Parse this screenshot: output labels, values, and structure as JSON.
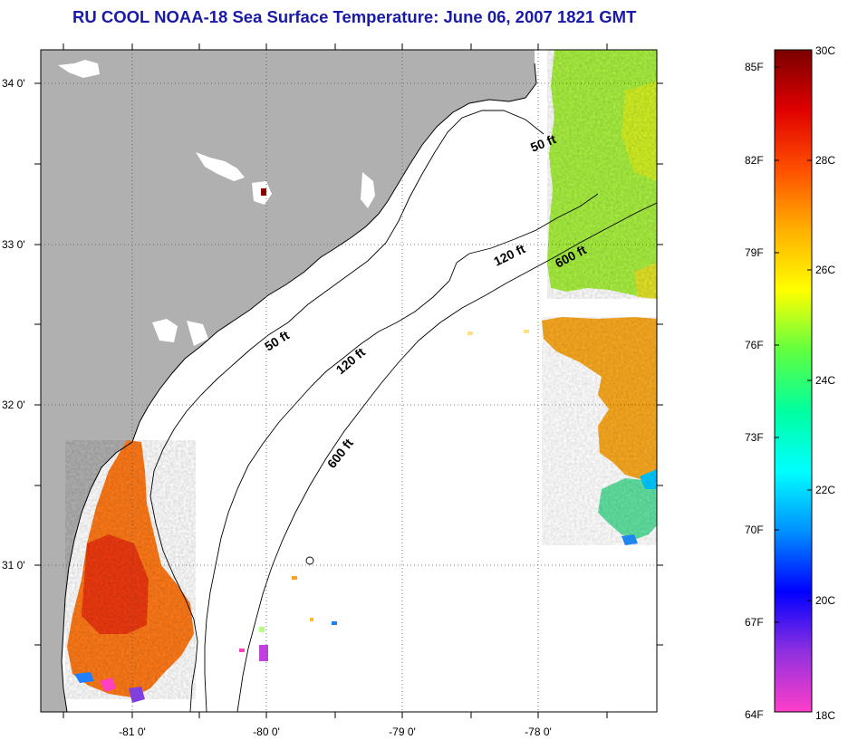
{
  "title": "RU COOL  NOAA-18  Sea Surface Temperature:  June 06, 2007 1821 GMT",
  "map": {
    "latitude_labels": [
      "34 0'",
      "33 0'",
      "32 0'",
      "31 0'"
    ],
    "longitude_labels": [
      "-81 0'",
      "-80 0'",
      "-79 0'",
      "-78 0'"
    ],
    "contours": [
      {
        "name": "50 ft",
        "label": "50 ft"
      },
      {
        "name": "120 ft",
        "label": "120 ft"
      },
      {
        "name": "600 ft",
        "label": "600 ft"
      }
    ],
    "colors": {
      "land": "#b0b0b0",
      "no_data": "#ffffff",
      "grid": "#555555"
    }
  },
  "colorbar": {
    "fahrenheit_labels": [
      "85F",
      "82F",
      "79F",
      "76F",
      "73F",
      "70F",
      "67F",
      "64F"
    ],
    "celsius_labels": [
      "30C",
      "28C",
      "26C",
      "24C",
      "22C",
      "20C",
      "18C"
    ],
    "gradient_stops": [
      "#ff3ec8",
      "#9030e0",
      "#0000ff",
      "#0090ff",
      "#00ffff",
      "#00ffa0",
      "#60ff40",
      "#ffff00",
      "#ffb000",
      "#ff5000",
      "#e00000",
      "#7a0000"
    ]
  }
}
